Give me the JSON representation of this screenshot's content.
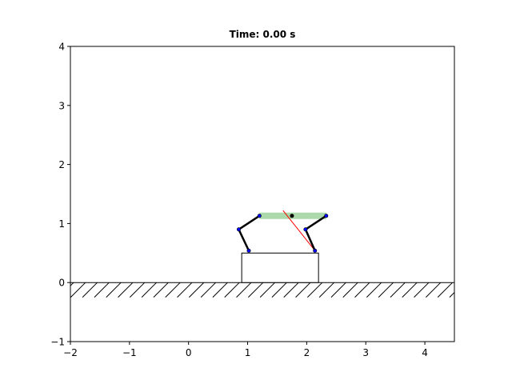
{
  "chart_data": {
    "type": "scatter",
    "title": "Time: 0.00 s",
    "xlabel": "",
    "ylabel": "",
    "xlim": [
      -2,
      4.5
    ],
    "ylim": [
      -1,
      4
    ],
    "grid": false,
    "x_ticks": [
      -2,
      -1,
      0,
      1,
      2,
      3,
      4
    ],
    "y_ticks": [
      -1,
      0,
      1,
      2,
      3,
      4
    ],
    "x_tick_labels": [
      "−2",
      "−1",
      "0",
      "1",
      "2",
      "3",
      "4"
    ],
    "y_tick_labels": [
      "−1",
      "0",
      "1",
      "2",
      "3",
      "4"
    ],
    "ground": {
      "y": 0,
      "x_range": [
        -2,
        4.5
      ],
      "hatch_depth": 0.25
    },
    "step_box": {
      "x": [
        0.9,
        2.2
      ],
      "y": [
        0,
        0.5
      ]
    },
    "body_bar": {
      "x": [
        1.2,
        2.33
      ],
      "y": 1.13,
      "color": "#2ca02c"
    },
    "center_of_mass": {
      "x": 1.75,
      "y": 1.13,
      "color": "#000000"
    },
    "legs": [
      {
        "name": "rear leg",
        "points": [
          [
            1.2,
            1.13
          ],
          [
            0.85,
            0.9
          ],
          [
            1.02,
            0.54
          ]
        ]
      },
      {
        "name": "front leg",
        "points": [
          [
            2.33,
            1.13
          ],
          [
            1.98,
            0.9
          ],
          [
            2.14,
            0.54
          ]
        ]
      }
    ],
    "joint_color": "#0000ff",
    "force_vector": {
      "from": [
        2.14,
        0.54
      ],
      "to": [
        1.6,
        1.22
      ],
      "color": "#ff0000"
    }
  }
}
